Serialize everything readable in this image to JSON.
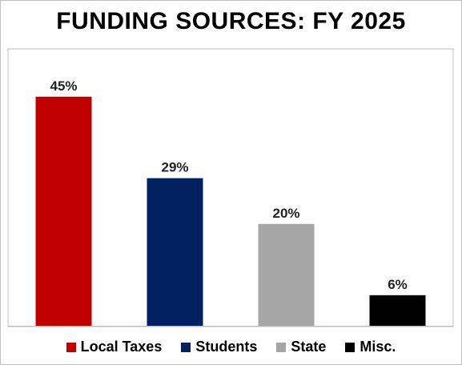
{
  "chart_data": {
    "type": "bar",
    "title": "FUNDING SOURCES: FY 2025",
    "categories": [
      "Local Taxes",
      "Students",
      "State",
      "Misc."
    ],
    "values": [
      45,
      29,
      20,
      6
    ],
    "labels": [
      "45%",
      "29%",
      "20%",
      "6%"
    ],
    "colors": [
      "#c00000",
      "#002060",
      "#a6a6a6",
      "#000000"
    ],
    "unit": "%",
    "ylim": [
      0,
      50
    ],
    "grid": false,
    "legend": "bottom"
  }
}
